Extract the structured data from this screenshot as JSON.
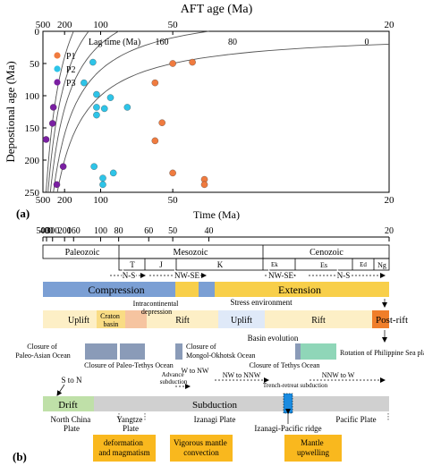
{
  "chart_data": {
    "type": "scatter",
    "title": "",
    "xlabel_top": "AFT age (Ma)",
    "xlabel_bottom": "Time (Ma)",
    "ylabel": "Depostional age (Ma)",
    "x_scale": "reciprocal",
    "x_ticks": [
      500,
      200,
      100,
      50,
      20
    ],
    "x_range": [
      500,
      20
    ],
    "y_ticks": [
      0,
      50,
      100,
      150,
      200,
      250
    ],
    "y_range": [
      0,
      250
    ],
    "lag_title": "Lag time (Ma)",
    "lag_lines": [
      "160",
      "80",
      "0"
    ],
    "legend_placement": "top-left",
    "series": [
      {
        "name": "P1",
        "color": "#f07b3f",
        "points": [
          {
            "x": 50,
            "y": 50
          },
          {
            "x": 44,
            "y": 48
          },
          {
            "x": 57,
            "y": 80
          },
          {
            "x": 54,
            "y": 142
          },
          {
            "x": 57,
            "y": 170
          },
          {
            "x": 50,
            "y": 220
          },
          {
            "x": 41,
            "y": 230
          },
          {
            "x": 41,
            "y": 238
          }
        ]
      },
      {
        "name": "P2",
        "color": "#2ec4e8",
        "points": [
          {
            "x": 112,
            "y": 48
          },
          {
            "x": 130,
            "y": 80
          },
          {
            "x": 106,
            "y": 98
          },
          {
            "x": 88,
            "y": 103
          },
          {
            "x": 106,
            "y": 118
          },
          {
            "x": 106,
            "y": 130
          },
          {
            "x": 95,
            "y": 120
          },
          {
            "x": 73,
            "y": 118
          },
          {
            "x": 110,
            "y": 210
          },
          {
            "x": 85,
            "y": 220
          },
          {
            "x": 97,
            "y": 228
          },
          {
            "x": 97,
            "y": 238
          }
        ]
      },
      {
        "name": "P3",
        "color": "#7a1fa2",
        "points": [
          {
            "x": 410,
            "y": 168
          },
          {
            "x": 300,
            "y": 143
          },
          {
            "x": 290,
            "y": 118
          },
          {
            "x": 208,
            "y": 210
          },
          {
            "x": 255,
            "y": 238
          }
        ]
      }
    ]
  },
  "panel_a_label": "(a)",
  "panel_b_label": "(b)",
  "timeline": {
    "ticks": [
      "500",
      "400",
      "300",
      "200",
      "160",
      "100",
      "80",
      "60",
      "50",
      "40",
      "20"
    ],
    "eras": [
      "Paleozoic",
      "Mesozoic",
      "Cenozoic"
    ],
    "periods": [
      "T",
      "J",
      "K",
      "Ek",
      "Es",
      "Ed",
      "Ng"
    ],
    "stress_dirs": [
      "N-S",
      "NW-SE",
      "NW-SE",
      "N-S"
    ],
    "stress_bar": [
      "Compression",
      "Extension"
    ],
    "stress_caption": "Stress environment",
    "basin_bar": [
      "Uplift",
      "Craton basin",
      "Intracontinental depression",
      "Rift",
      "Uplift",
      "Rift",
      "Post-rift"
    ],
    "basin_caption": "Basin evolution",
    "closures": [
      "Closure of Paleo-Asian Ocean",
      "Closure of Paleo-Tethys Ocean",
      "Closure of Mongol-Okhotsk Ocean",
      "Closure of Tethys Ocean",
      "Rotation of Philippine Sea plate"
    ],
    "subduction_notes": [
      "S to N",
      "Advance subduction",
      "W to NW",
      "NW to NNW",
      "Trench-retreat subduction",
      "NNW to W"
    ],
    "subduction_bar": [
      "Drift",
      "Subduction"
    ],
    "plates": [
      "North China Plate",
      "Yangtze Plate",
      "Izanagi Plate",
      "Izanagi-Pacific ridge",
      "Pacific Plate"
    ],
    "boxes": [
      "deformation and magmatism",
      "Vigorous mantle convection",
      "Mantle upwelling"
    ]
  }
}
